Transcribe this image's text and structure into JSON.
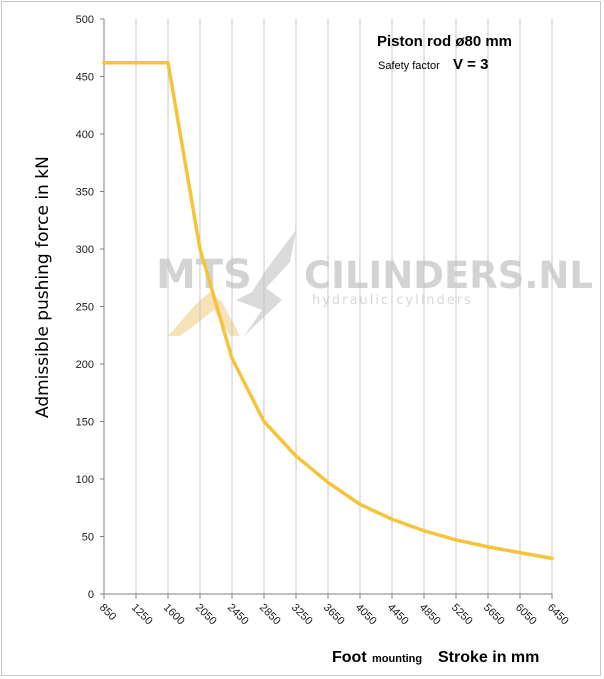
{
  "chart_data": {
    "type": "line",
    "ylabel": "Admissible  pushing  force in kN",
    "xlabel_prefix": "Foot",
    "xlabel_prefix_small": "mounting",
    "xlabel": "Stroke in mm",
    "annotation": {
      "line1": "Piston rod ø80 mm",
      "line2_small": "Safety factor",
      "line2_value": "V = 3"
    },
    "categories": [
      "850",
      "1250",
      "1600",
      "2050",
      "2450",
      "2850",
      "3250",
      "3650",
      "4050",
      "4450",
      "4850",
      "5250",
      "5650",
      "6050",
      "6450"
    ],
    "yticks": [
      0,
      50,
      100,
      150,
      200,
      250,
      300,
      350,
      400,
      450,
      500
    ],
    "ylim": [
      0,
      500
    ],
    "grid": "vertical",
    "series": [
      {
        "color": "#f5c43a",
        "points": [
          {
            "x": "850",
            "y": 462
          },
          {
            "x": "1250",
            "y": 462
          },
          {
            "x": "1600",
            "y": 462
          },
          {
            "x": "2050",
            "y": 300
          },
          {
            "x": "2450",
            "y": 205
          },
          {
            "x": "2850",
            "y": 150
          },
          {
            "x": "3250",
            "y": 120
          },
          {
            "x": "3650",
            "y": 97
          },
          {
            "x": "4050",
            "y": 78
          },
          {
            "x": "4450",
            "y": 65
          },
          {
            "x": "4850",
            "y": 55
          },
          {
            "x": "5250",
            "y": 47
          },
          {
            "x": "5650",
            "y": 41
          },
          {
            "x": "6050",
            "y": 36
          },
          {
            "x": "6450",
            "y": 31
          }
        ]
      }
    ]
  },
  "watermark": {
    "brand_left": "MTS",
    "brand_right": "CILINDERS.NL",
    "tagline": "hydraulic cylinders"
  }
}
